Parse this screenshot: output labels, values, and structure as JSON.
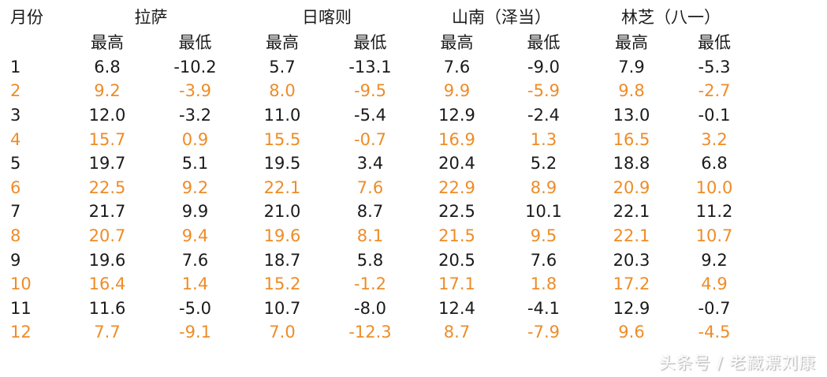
{
  "chart_data": {
    "type": "table",
    "month_header": "月份",
    "city_groups": [
      {
        "name": "拉萨",
        "sub": [
          "最高",
          "最低"
        ]
      },
      {
        "name": "日喀则",
        "sub": [
          "最高",
          "最低"
        ]
      },
      {
        "name": "山南（泽当）",
        "sub": [
          "最高",
          "最低"
        ]
      },
      {
        "name": "林芝（八一）",
        "sub": [
          "最高",
          "最低"
        ]
      }
    ],
    "rows": [
      {
        "month": "1",
        "highlight": false,
        "cells": [
          "6.8",
          "-10.2",
          "5.7",
          "-13.1",
          "7.6",
          "-9.0",
          "7.9",
          "-5.3"
        ]
      },
      {
        "month": "2",
        "highlight": true,
        "cells": [
          "9.2",
          "-3.9",
          "8.0",
          "-9.5",
          "9.9",
          "-5.9",
          "9.8",
          "-2.7"
        ]
      },
      {
        "month": "3",
        "highlight": false,
        "cells": [
          "12.0",
          "-3.2",
          "11.0",
          "-5.4",
          "12.9",
          "-2.4",
          "13.0",
          "-0.1"
        ]
      },
      {
        "month": "4",
        "highlight": true,
        "cells": [
          "15.7",
          "0.9",
          "15.5",
          "-0.7",
          "16.9",
          "1.3",
          "16.5",
          "3.2"
        ]
      },
      {
        "month": "5",
        "highlight": false,
        "cells": [
          "19.7",
          "5.1",
          "19.5",
          "3.4",
          "20.4",
          "5.2",
          "18.8",
          "6.8"
        ]
      },
      {
        "month": "6",
        "highlight": true,
        "cells": [
          "22.5",
          "9.2",
          "22.1",
          "7.6",
          "22.9",
          "8.9",
          "20.9",
          "10.0"
        ]
      },
      {
        "month": "7",
        "highlight": false,
        "cells": [
          "21.7",
          "9.9",
          "21.0",
          "8.7",
          "22.5",
          "10.1",
          "22.1",
          "11.2"
        ]
      },
      {
        "month": "8",
        "highlight": true,
        "cells": [
          "20.7",
          "9.4",
          "19.6",
          "8.1",
          "21.5",
          "9.5",
          "22.1",
          "10.7"
        ]
      },
      {
        "month": "9",
        "highlight": false,
        "cells": [
          "19.6",
          "7.6",
          "18.7",
          "5.8",
          "20.5",
          "7.6",
          "20.3",
          "9.2"
        ]
      },
      {
        "month": "10",
        "highlight": true,
        "cells": [
          "16.4",
          "1.4",
          "15.2",
          "-1.2",
          "17.1",
          "1.8",
          "17.2",
          "4.9"
        ]
      },
      {
        "month": "11",
        "highlight": false,
        "cells": [
          "11.6",
          "-5.0",
          "10.7",
          "-8.0",
          "12.4",
          "-4.1",
          "12.9",
          "-0.7"
        ]
      },
      {
        "month": "12",
        "highlight": true,
        "cells": [
          "7.7",
          "-9.1",
          "7.0",
          "-12.3",
          "8.7",
          "-7.9",
          "9.6",
          "-4.5"
        ]
      }
    ]
  },
  "watermark": {
    "text": "头条号 / 老藏漂刘康"
  },
  "colors": {
    "normal_text": "#1a1a1a",
    "highlight_text": "#ee8c28",
    "background": "#ffffff",
    "watermark_outline": "#bdbdbd"
  }
}
